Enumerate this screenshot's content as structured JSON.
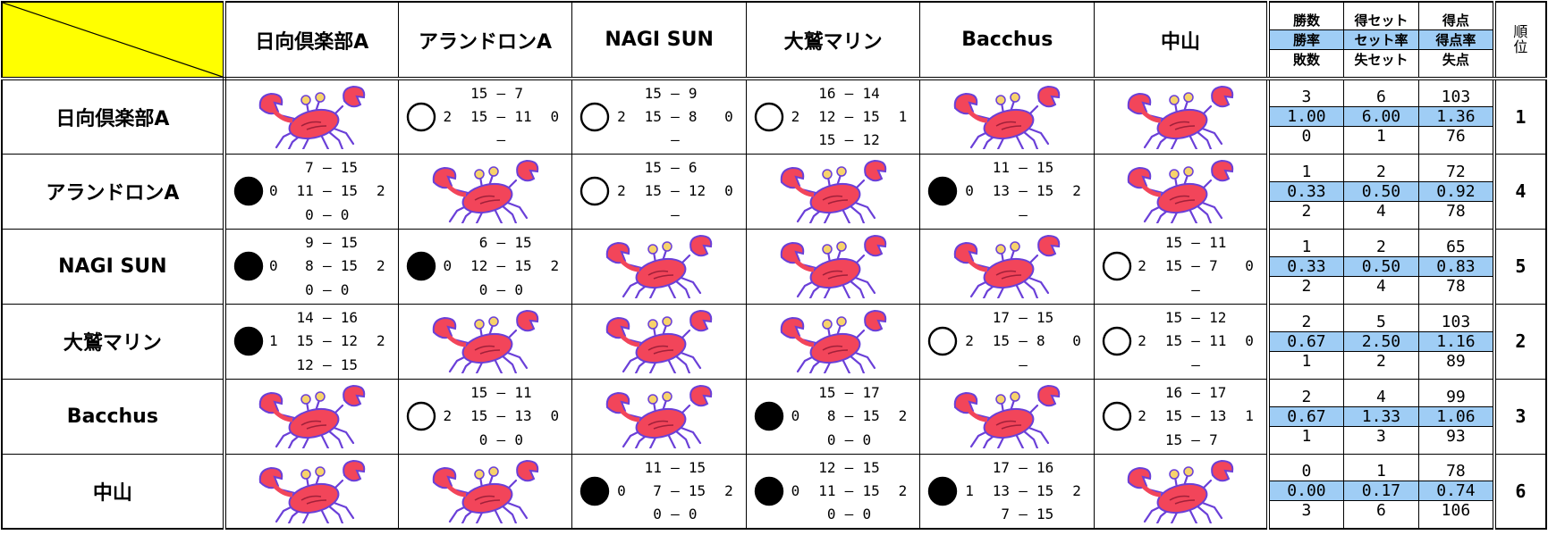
{
  "header": {
    "teams": [
      "日向倶楽部A",
      "アランドロンA",
      "NAGI SUN",
      "大鷲マリン",
      "Bacchus",
      "中山"
    ],
    "stats": [
      [
        "勝数",
        "勝率",
        "敗数"
      ],
      [
        "得セット",
        "セット率",
        "失セット"
      ],
      [
        "得点",
        "得点率",
        "失点"
      ]
    ],
    "rank": "順位"
  },
  "dash": "—",
  "rows": [
    {
      "cells": [
        null,
        {
          "result": "win",
          "sets": [
            2,
            0
          ],
          "games": [
            [
              15,
              7
            ],
            [
              15,
              11
            ],
            null
          ]
        },
        {
          "result": "win",
          "sets": [
            2,
            0
          ],
          "games": [
            [
              15,
              9
            ],
            [
              15,
              8
            ],
            null
          ]
        },
        {
          "result": "win",
          "sets": [
            2,
            1
          ],
          "games": [
            [
              16,
              14
            ],
            [
              12,
              15
            ],
            [
              15,
              12
            ]
          ]
        },
        null,
        null
      ],
      "stats": [
        [
          "3",
          "1.00",
          "0"
        ],
        [
          "6",
          "6.00",
          "1"
        ],
        [
          "103",
          "1.36",
          "76"
        ]
      ],
      "rank": 1
    },
    {
      "cells": [
        {
          "result": "loss",
          "sets": [
            0,
            2
          ],
          "games": [
            [
              7,
              15
            ],
            [
              11,
              15
            ],
            [
              0,
              0
            ]
          ]
        },
        null,
        {
          "result": "win",
          "sets": [
            2,
            0
          ],
          "games": [
            [
              15,
              6
            ],
            [
              15,
              12
            ],
            null
          ]
        },
        null,
        {
          "result": "loss",
          "sets": [
            0,
            2
          ],
          "games": [
            [
              11,
              15
            ],
            [
              13,
              15
            ],
            null
          ]
        },
        null
      ],
      "stats": [
        [
          "1",
          "0.33",
          "2"
        ],
        [
          "2",
          "0.50",
          "4"
        ],
        [
          "72",
          "0.92",
          "78"
        ]
      ],
      "rank": 4
    },
    {
      "cells": [
        {
          "result": "loss",
          "sets": [
            0,
            2
          ],
          "games": [
            [
              9,
              15
            ],
            [
              8,
              15
            ],
            [
              0,
              0
            ]
          ]
        },
        {
          "result": "loss",
          "sets": [
            0,
            2
          ],
          "games": [
            [
              6,
              15
            ],
            [
              12,
              15
            ],
            [
              0,
              0
            ]
          ]
        },
        null,
        null,
        null,
        {
          "result": "win",
          "sets": [
            2,
            0
          ],
          "games": [
            [
              15,
              11
            ],
            [
              15,
              7
            ],
            null
          ]
        }
      ],
      "stats": [
        [
          "1",
          "0.33",
          "2"
        ],
        [
          "2",
          "0.50",
          "4"
        ],
        [
          "65",
          "0.83",
          "78"
        ]
      ],
      "rank": 5
    },
    {
      "cells": [
        {
          "result": "loss",
          "sets": [
            1,
            2
          ],
          "games": [
            [
              14,
              16
            ],
            [
              15,
              12
            ],
            [
              12,
              15
            ]
          ]
        },
        null,
        null,
        null,
        {
          "result": "win",
          "sets": [
            2,
            0
          ],
          "games": [
            [
              17,
              15
            ],
            [
              15,
              8
            ],
            null
          ]
        },
        {
          "result": "win",
          "sets": [
            2,
            0
          ],
          "games": [
            [
              15,
              12
            ],
            [
              15,
              11
            ],
            null
          ]
        }
      ],
      "stats": [
        [
          "2",
          "0.67",
          "1"
        ],
        [
          "5",
          "2.50",
          "2"
        ],
        [
          "103",
          "1.16",
          "89"
        ]
      ],
      "rank": 2
    },
    {
      "cells": [
        null,
        {
          "result": "win",
          "sets": [
            2,
            0
          ],
          "games": [
            [
              15,
              11
            ],
            [
              15,
              13
            ],
            [
              0,
              0
            ]
          ]
        },
        null,
        {
          "result": "loss",
          "sets": [
            0,
            2
          ],
          "games": [
            [
              15,
              17
            ],
            [
              8,
              15
            ],
            [
              0,
              0
            ]
          ]
        },
        null,
        {
          "result": "win",
          "sets": [
            2,
            1
          ],
          "games": [
            [
              16,
              17
            ],
            [
              15,
              13
            ],
            [
              15,
              7
            ]
          ]
        }
      ],
      "stats": [
        [
          "2",
          "0.67",
          "1"
        ],
        [
          "4",
          "1.33",
          "3"
        ],
        [
          "99",
          "1.06",
          "93"
        ]
      ],
      "rank": 3
    },
    {
      "cells": [
        null,
        null,
        {
          "result": "loss",
          "sets": [
            0,
            2
          ],
          "games": [
            [
              11,
              15
            ],
            [
              7,
              15
            ],
            [
              0,
              0
            ]
          ]
        },
        {
          "result": "loss",
          "sets": [
            0,
            2
          ],
          "games": [
            [
              12,
              15
            ],
            [
              11,
              15
            ],
            [
              0,
              0
            ]
          ]
        },
        {
          "result": "loss",
          "sets": [
            1,
            2
          ],
          "games": [
            [
              17,
              16
            ],
            [
              13,
              15
            ],
            [
              7,
              15
            ]
          ]
        },
        null
      ],
      "stats": [
        [
          "0",
          "0.00",
          "3"
        ],
        [
          "1",
          "0.17",
          "6"
        ],
        [
          "78",
          "0.74",
          "106"
        ]
      ],
      "rank": 6
    }
  ]
}
